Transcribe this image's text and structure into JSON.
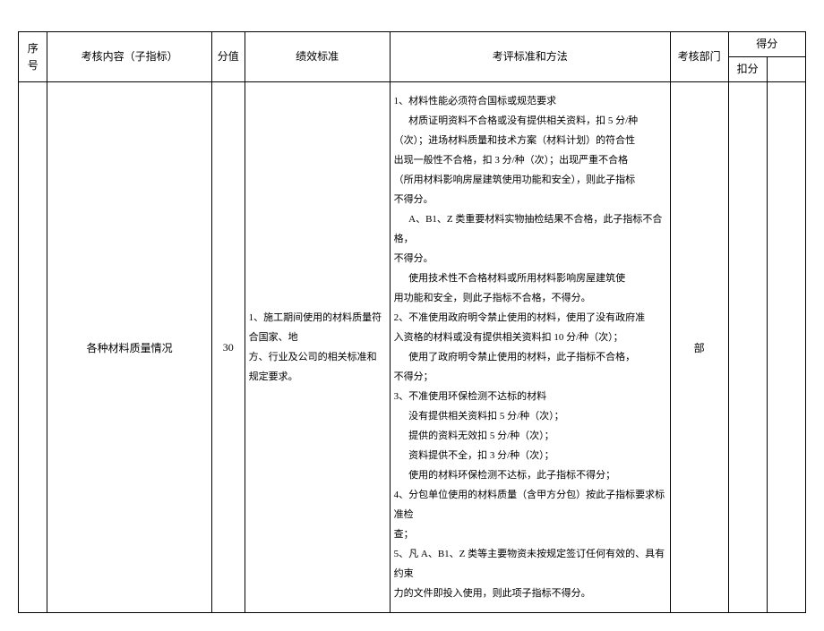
{
  "header": {
    "seq": "序号",
    "content": "考核内容（子指标）",
    "score": "分值",
    "perf": "绩效标准",
    "method": "考评标准和方法",
    "dept": "考核部门",
    "result": "得分",
    "sub_deduct": "扣分",
    "sub_blank": ""
  },
  "row": {
    "seq": "",
    "content": "各种材料质量情况",
    "score": "30",
    "perf_l1": "1、施工期间使用的材料质量符合国家、地",
    "perf_l2": "方、行业及公司的相关标准和规定要求。",
    "dept": "部",
    "method": {
      "p1": "1、材料性能必须符合国标或规范要求",
      "p2": "材质证明资料不合格或没有提供相关资料，扣 5 分/种",
      "p3": "（次）；进场材料质量和技术方案（材料计划）的符合性",
      "p4": "出现一般性不合格，扣 3 分/种（次）；出现严重不合格",
      "p5": "（所用材料影响房屋建筑使用功能和安全），则此子指标",
      "p6": "不得分。",
      "p7": "A、B1、Z 类重要材料实物抽检结果不合格，此子指标不合格，",
      "p8": "不得分。",
      "p9": "使用技术性不合格材料或所用材料影响房屋建筑使",
      "p10": "用功能和安全，则此子指标不合格，不得分。",
      "p11": "2、不准使用政府明令禁止使用的材料，使用了没有政府准",
      "p12": "入资格的材料或没有提供相关资料扣 10 分/种（次）；",
      "p13": "使用了政府明令禁止使用的材料，此子指标不合格，",
      "p14": "不得分；",
      "p15": "3、不准使用环保检测不达标的材料",
      "p16": "没有提供相关资料扣 5 分/种（次）；",
      "p17": "提供的资料无效扣 5 分/种（次）；",
      "p18": "资料提供不全，扣 3 分/种（次）；",
      "p19": "使用的材料环保检测不达标，此子指标不得分；",
      "p20": "4、分包单位使用的材料质量（含甲方分包）按此子指标要求标准检",
      "p21": "查；",
      "p22": "5、凡 A、B1、Z 类等主要物资未按规定签订任何有效的、具有约束",
      "p23": "力的文件即投入使用，则此项子指标不得分。"
    }
  },
  "style": {
    "border_color": "#000000",
    "background_color": "#ffffff",
    "header_fontsize": 12,
    "body_fontsize": 11,
    "line_height_body": 2.0,
    "font_family": "SimSun"
  }
}
